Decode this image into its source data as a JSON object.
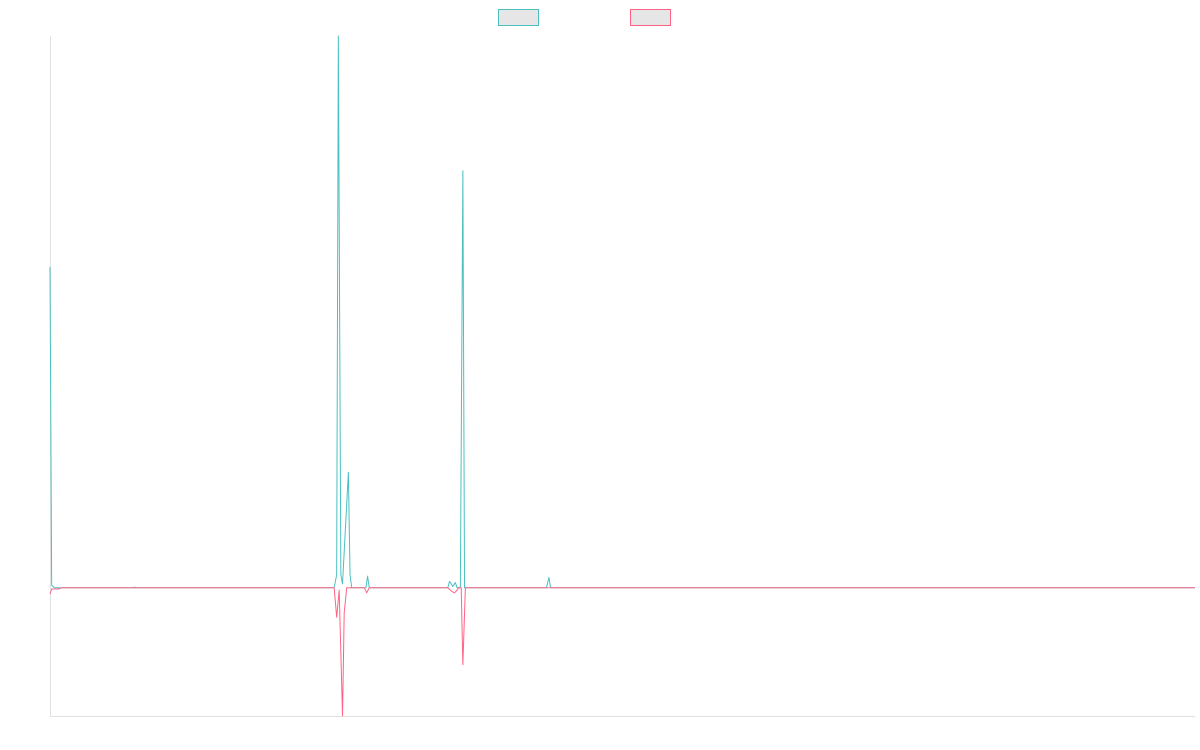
{
  "chart_data": {
    "type": "line",
    "title": "",
    "xlabel": "",
    "ylabel": "",
    "grid": false,
    "legend_position": "top-center",
    "xlim": [
      0,
      1370
    ],
    "ylim": [
      -100,
      430
    ],
    "series": [
      {
        "name": "",
        "color": "#4bc0c0",
        "legend_fill": "#e6e6e6",
        "points": [
          [
            0,
            250
          ],
          [
            2,
            2
          ],
          [
            5,
            0
          ],
          [
            100,
            0
          ],
          [
            101,
            0.5
          ],
          [
            102,
            0
          ],
          [
            340,
            0
          ],
          [
            343,
            10
          ],
          [
            345,
            430
          ],
          [
            348,
            10
          ],
          [
            350,
            3
          ],
          [
            357,
            90
          ],
          [
            359,
            10
          ],
          [
            361,
            0
          ],
          [
            378,
            0
          ],
          [
            380,
            9
          ],
          [
            382,
            0
          ],
          [
            476,
            0
          ],
          [
            478,
            5
          ],
          [
            482,
            1
          ],
          [
            485,
            4
          ],
          [
            487,
            0
          ],
          [
            491,
            0
          ],
          [
            494,
            325
          ],
          [
            496,
            0
          ],
          [
            594,
            0
          ],
          [
            597,
            8
          ],
          [
            599,
            0
          ],
          [
            1370,
            0
          ]
        ]
      },
      {
        "name": "",
        "color": "#ff6384",
        "legend_fill": "#e6e6e6",
        "points": [
          [
            0,
            -5
          ],
          [
            2,
            -1
          ],
          [
            10,
            -1
          ],
          [
            14,
            0
          ],
          [
            340,
            0
          ],
          [
            343,
            -23
          ],
          [
            346,
            -2
          ],
          [
            350,
            -100
          ],
          [
            352,
            -20
          ],
          [
            355,
            0
          ],
          [
            376,
            0
          ],
          [
            379,
            -4
          ],
          [
            382,
            0
          ],
          [
            476,
            0
          ],
          [
            481,
            -3
          ],
          [
            484,
            -4
          ],
          [
            487,
            -2
          ],
          [
            489,
            0
          ],
          [
            492,
            0
          ],
          [
            494,
            -60
          ],
          [
            497,
            0
          ],
          [
            1370,
            0
          ]
        ]
      }
    ]
  }
}
